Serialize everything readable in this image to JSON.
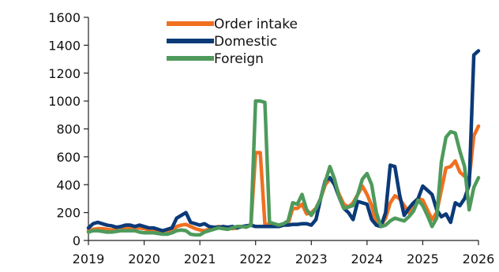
{
  "chart_data": {
    "type": "line",
    "title": "",
    "xlabel": "",
    "ylabel": "",
    "x_range": [
      "2019-01",
      "2026-01"
    ],
    "ylim": [
      0,
      1600
    ],
    "yticks": [
      0,
      200,
      400,
      600,
      800,
      1000,
      1200,
      1400,
      1600
    ],
    "xtick_labels": [
      "2019",
      "2020",
      "2021",
      "2022",
      "2023",
      "2024",
      "2025",
      "2026"
    ],
    "grid": false,
    "legend_position": "top-center",
    "x": [
      "2019-01",
      "2019-02",
      "2019-03",
      "2019-04",
      "2019-05",
      "2019-06",
      "2019-07",
      "2019-08",
      "2019-09",
      "2019-10",
      "2019-11",
      "2019-12",
      "2020-01",
      "2020-02",
      "2020-03",
      "2020-04",
      "2020-05",
      "2020-06",
      "2020-07",
      "2020-08",
      "2020-09",
      "2020-10",
      "2020-11",
      "2020-12",
      "2021-01",
      "2021-02",
      "2021-03",
      "2021-04",
      "2021-05",
      "2021-06",
      "2021-07",
      "2021-08",
      "2021-09",
      "2021-10",
      "2021-11",
      "2021-12",
      "2022-01",
      "2022-02",
      "2022-03",
      "2022-04",
      "2022-05",
      "2022-06",
      "2022-07",
      "2022-08",
      "2022-09",
      "2022-10",
      "2022-11",
      "2022-12",
      "2023-01",
      "2023-02",
      "2023-03",
      "2023-04",
      "2023-05",
      "2023-06",
      "2023-07",
      "2023-08",
      "2023-09",
      "2023-10",
      "2023-11",
      "2023-12",
      "2024-01",
      "2024-02",
      "2024-03",
      "2024-04",
      "2024-05",
      "2024-06",
      "2024-07",
      "2024-08",
      "2024-09",
      "2024-10",
      "2024-11",
      "2024-12",
      "2025-01",
      "2025-02",
      "2025-03",
      "2025-04",
      "2025-05",
      "2025-06",
      "2025-07",
      "2025-08",
      "2025-09",
      "2025-10",
      "2025-11",
      "2025-12",
      "2026-01"
    ],
    "series": [
      {
        "name": "Order intake",
        "color": "#F07020",
        "values": [
          70,
          80,
          85,
          85,
          80,
          75,
          80,
          85,
          90,
          90,
          85,
          90,
          85,
          75,
          70,
          60,
          55,
          60,
          70,
          100,
          110,
          115,
          100,
          85,
          75,
          70,
          80,
          90,
          100,
          95,
          90,
          85,
          90,
          100,
          100,
          110,
          630,
          630,
          120,
          110,
          100,
          110,
          115,
          120,
          230,
          230,
          260,
          190,
          200,
          230,
          300,
          400,
          440,
          420,
          330,
          260,
          240,
          270,
          330,
          390,
          330,
          250,
          120,
          110,
          160,
          270,
          320,
          300,
          250,
          200,
          250,
          300,
          290,
          220,
          150,
          200,
          360,
          520,
          530,
          570,
          490,
          460,
          440,
          750,
          820
        ]
      },
      {
        "name": "Domestic",
        "color": "#0B3A78",
        "values": [
          90,
          120,
          130,
          120,
          110,
          105,
          95,
          100,
          110,
          110,
          100,
          110,
          100,
          90,
          90,
          80,
          70,
          80,
          90,
          160,
          180,
          200,
          130,
          120,
          110,
          120,
          100,
          95,
          95,
          100,
          95,
          100,
          90,
          100,
          105,
          110,
          100,
          100,
          100,
          100,
          100,
          100,
          110,
          110,
          115,
          115,
          120,
          120,
          110,
          150,
          300,
          430,
          450,
          400,
          310,
          230,
          200,
          150,
          280,
          270,
          260,
          150,
          110,
          100,
          200,
          540,
          530,
          330,
          180,
          230,
          270,
          300,
          390,
          360,
          330,
          220,
          170,
          190,
          130,
          270,
          250,
          300,
          400,
          1330,
          1360
        ]
      },
      {
        "name": "Foreign",
        "color": "#4E9A5C",
        "values": [
          60,
          70,
          70,
          65,
          60,
          60,
          65,
          70,
          70,
          70,
          70,
          60,
          55,
          55,
          55,
          50,
          45,
          45,
          55,
          70,
          75,
          70,
          45,
          40,
          40,
          60,
          70,
          80,
          90,
          85,
          80,
          90,
          100,
          100,
          95,
          110,
          1000,
          1000,
          990,
          130,
          120,
          110,
          120,
          140,
          270,
          260,
          330,
          220,
          180,
          230,
          300,
          420,
          530,
          440,
          310,
          230,
          240,
          250,
          330,
          440,
          480,
          400,
          200,
          100,
          110,
          140,
          160,
          150,
          140,
          170,
          210,
          290,
          250,
          180,
          100,
          160,
          560,
          740,
          780,
          770,
          640,
          530,
          220,
          380,
          450
        ]
      }
    ]
  }
}
